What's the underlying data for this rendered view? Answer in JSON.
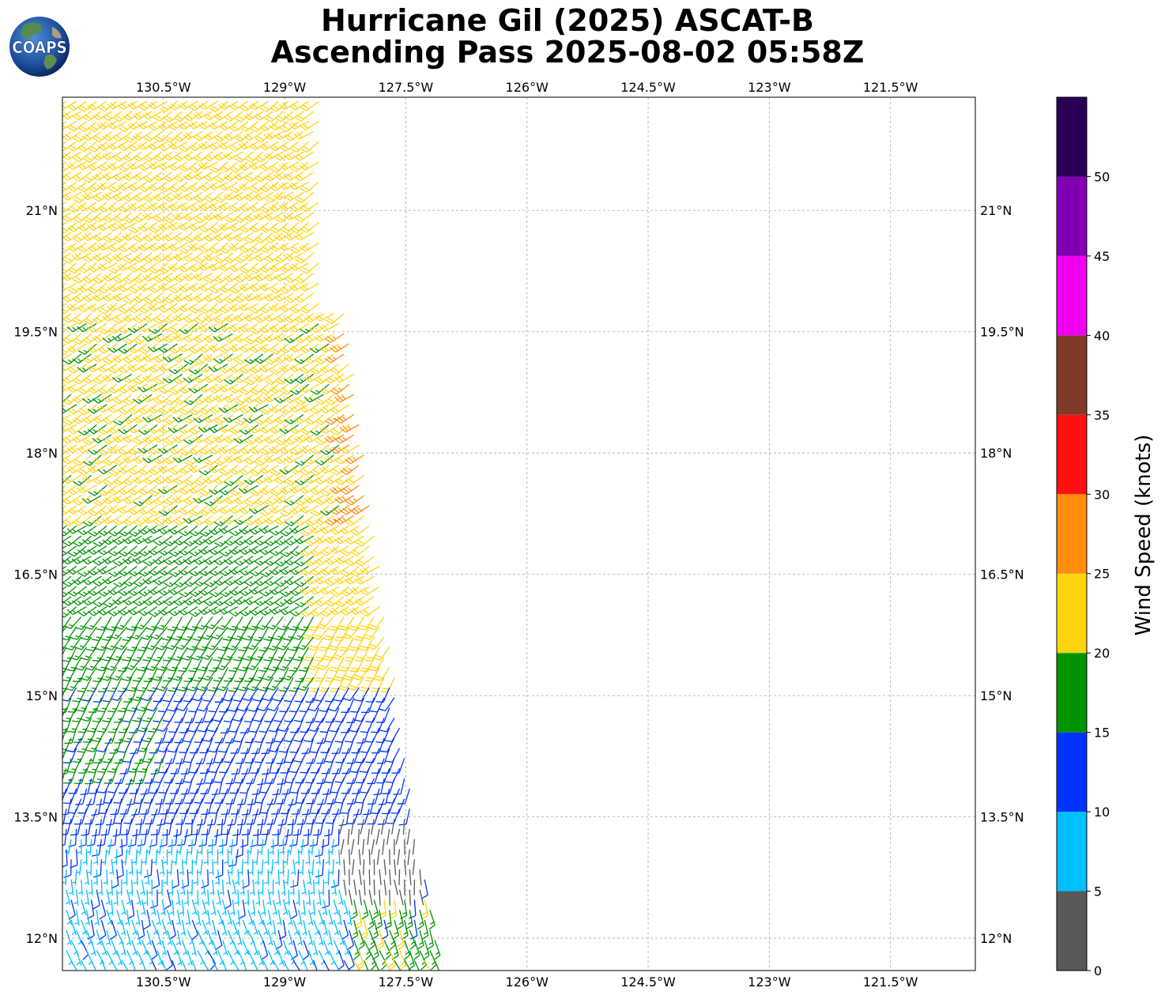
{
  "title": {
    "line1": "Hurricane Gil (2025) ASCAT-B",
    "line2": "Ascending Pass 2025-08-02 05:58Z"
  },
  "logo": {
    "text": "COAPS"
  },
  "map": {
    "lon_range": [
      -131.75,
      -120.45
    ],
    "lat_range": [
      11.6,
      22.4
    ],
    "lon_ticks": [
      "130.5°W",
      "129°W",
      "127.5°W",
      "126°W",
      "124.5°W",
      "123°W",
      "121.5°W"
    ],
    "lon_tick_values": [
      -130.5,
      -129,
      -127.5,
      -126,
      -124.5,
      -123,
      -121.5
    ],
    "lat_ticks": [
      "21°N",
      "19.5°N",
      "18°N",
      "16.5°N",
      "15°N",
      "13.5°N",
      "12°N"
    ],
    "lat_tick_values": [
      21,
      19.5,
      18,
      16.5,
      15,
      13.5,
      12
    ]
  },
  "colorbar": {
    "label": "Wind Speed (knots)",
    "tick_labels": [
      "0",
      "5",
      "10",
      "15",
      "20",
      "25",
      "30",
      "35",
      "40",
      "45",
      "50"
    ],
    "tick_values": [
      0,
      5,
      10,
      15,
      20,
      25,
      30,
      35,
      40,
      45,
      50
    ],
    "max": 55,
    "bins": [
      {
        "from": 0,
        "to": 5,
        "color": "#595959"
      },
      {
        "from": 5,
        "to": 10,
        "color": "#00bfff"
      },
      {
        "from": 10,
        "to": 15,
        "color": "#0033ff"
      },
      {
        "from": 15,
        "to": 20,
        "color": "#009400"
      },
      {
        "from": 20,
        "to": 25,
        "color": "#ffd40f"
      },
      {
        "from": 25,
        "to": 30,
        "color": "#ff8c0a"
      },
      {
        "from": 30,
        "to": 35,
        "color": "#ff1010"
      },
      {
        "from": 35,
        "to": 40,
        "color": "#7f3a28"
      },
      {
        "from": 40,
        "to": 45,
        "color": "#f000f0"
      },
      {
        "from": 45,
        "to": 50,
        "color": "#8200b4"
      },
      {
        "from": 50,
        "to": 55,
        "color": "#2b0057"
      }
    ]
  }
}
